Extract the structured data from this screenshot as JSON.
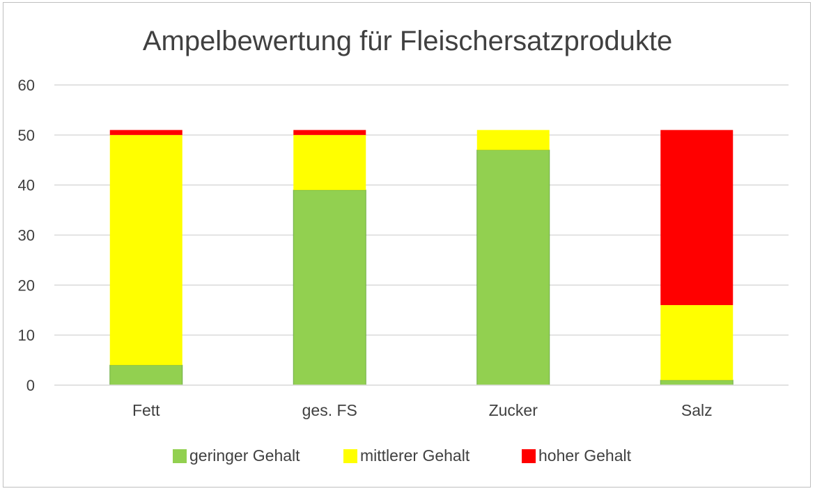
{
  "chart_data": {
    "type": "bar",
    "stacked": true,
    "title": "Ampelbewertung für Fleischersatzprodukte",
    "categories": [
      "Fett",
      "ges. FS",
      "Zucker",
      "Salz"
    ],
    "series": [
      {
        "name": "geringer Gehalt",
        "color": "#92d050",
        "values": [
          4,
          39,
          47,
          1
        ]
      },
      {
        "name": "mittlerer Gehalt",
        "color": "#ffff00",
        "values": [
          46,
          11,
          4,
          15
        ]
      },
      {
        "name": "hoher Gehalt",
        "color": "#ff0000",
        "values": [
          1,
          1,
          0,
          35
        ]
      }
    ],
    "ylim": [
      0,
      60
    ],
    "yticks": [
      "0",
      "10",
      "20",
      "30",
      "40",
      "50",
      "60"
    ],
    "grid": true,
    "legend_position": "bottom",
    "xlabel": "",
    "ylabel": ""
  }
}
